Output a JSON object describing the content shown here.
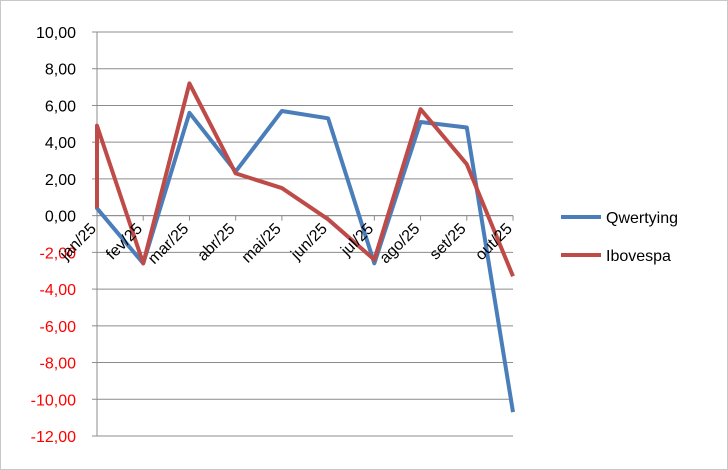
{
  "chart_data": {
    "type": "line",
    "categories": [
      "jan/25",
      "fev/25",
      "mar/25",
      "abr/25",
      "mai/25",
      "jun/25",
      "jul/25",
      "ago/25",
      "set/25",
      "out/25"
    ],
    "series": [
      {
        "name": "Qwertying",
        "color": "#4a7ebb",
        "values": [
          0.4,
          -2.6,
          5.6,
          2.4,
          5.7,
          5.3,
          -2.6,
          5.1,
          4.8,
          -10.7
        ],
        "start_value": 4.9
      },
      {
        "name": "Ibovespa",
        "color": "#be4b48",
        "values": [
          4.9,
          -2.6,
          7.2,
          2.3,
          1.5,
          -0.2,
          -2.4,
          5.8,
          2.8,
          -3.3
        ],
        "start_value": 0.4
      }
    ],
    "y_ticks": [
      "10,00",
      "8,00",
      "6,00",
      "4,00",
      "2,00",
      "0,00",
      "-2,00",
      "-4,00",
      "-6,00",
      "-8,00",
      "-10,00",
      "-12,00"
    ],
    "ylim": [
      -12,
      10
    ],
    "grid": true,
    "legend": "right",
    "positive_tick_color": "#000000",
    "negative_tick_color": "#ff0000",
    "title": "",
    "xlabel": "",
    "ylabel": ""
  }
}
